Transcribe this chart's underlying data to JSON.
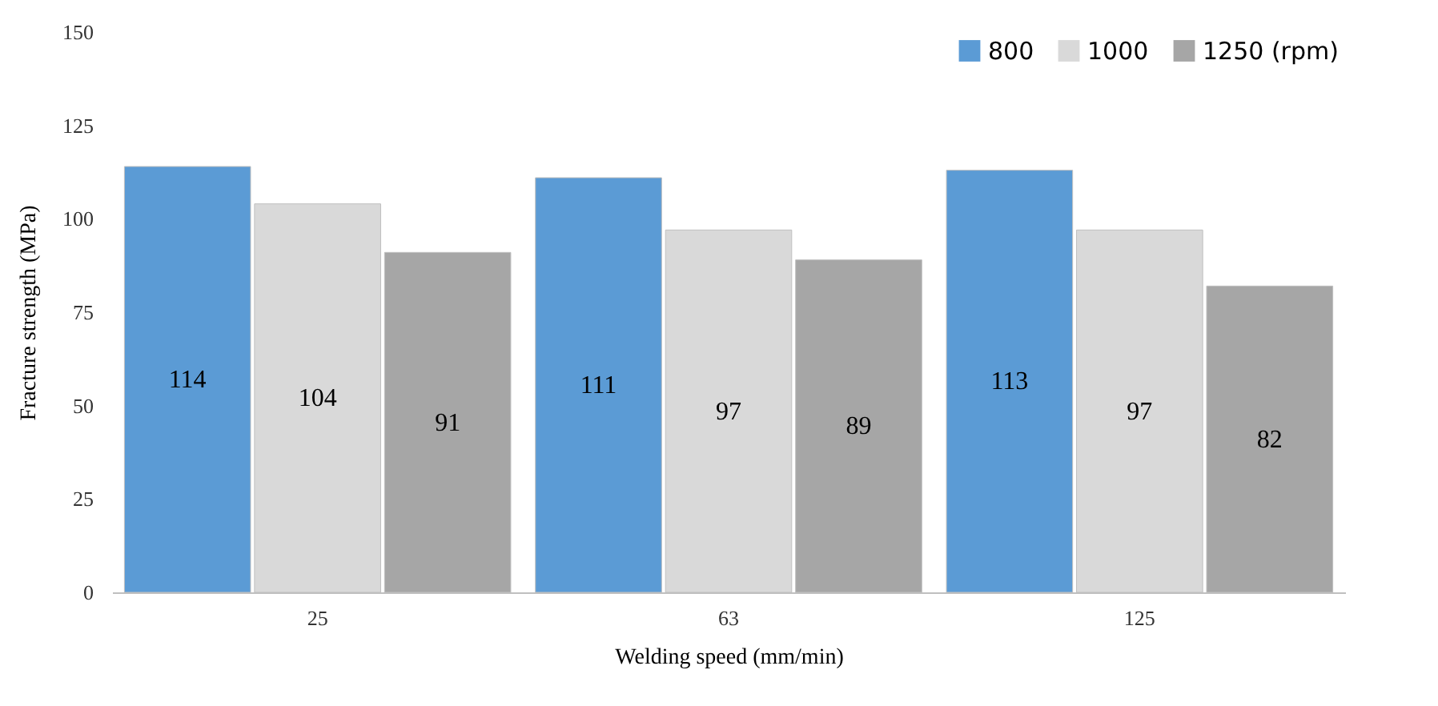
{
  "chart_data": {
    "type": "bar",
    "xlabel": "Welding speed (mm/min)",
    "ylabel": "Fracture strength (MPa)",
    "categories": [
      "25",
      "63",
      "125"
    ],
    "series": [
      {
        "name": "800",
        "color": "#5b9bd5",
        "values": [
          114,
          111,
          113
        ]
      },
      {
        "name": "1000",
        "color": "#d9d9d9",
        "values": [
          104,
          97,
          97
        ]
      },
      {
        "name": "1250 (rpm)",
        "color": "#a6a6a6",
        "values": [
          91,
          89,
          82
        ]
      }
    ],
    "ylim": [
      0,
      150
    ],
    "yticks": [
      0,
      25,
      50,
      75,
      100,
      125,
      150
    ],
    "grid": false,
    "legend": "top right",
    "data_labels": true
  }
}
